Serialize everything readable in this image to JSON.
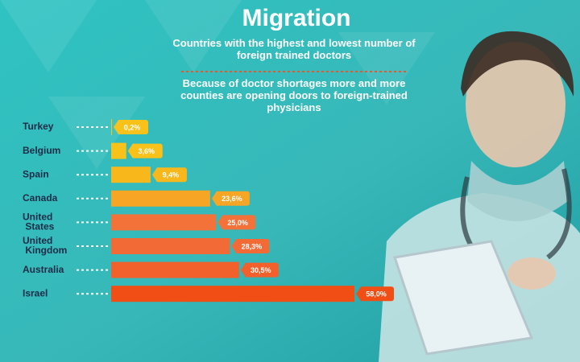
{
  "chart_data": {
    "type": "bar",
    "orientation": "horizontal",
    "title": "Migration",
    "subtitle": "Countries with the highest and lowest number of foreign trained doctors",
    "annotation": "Because of doctor shortages more and more counties are opening doors to foreign-trained physicians",
    "categories": [
      "Turkey",
      "Belgium",
      "Spain",
      "Canada",
      "United States",
      "United Kingdom",
      "Australia",
      "Israel"
    ],
    "values": [
      0.2,
      3.6,
      9.4,
      23.6,
      25.0,
      28.3,
      30.5,
      58.0
    ],
    "value_labels": [
      "0,2%",
      "3,6%",
      "9,4%",
      "23,6%",
      "25,0%",
      "28,3%",
      "30,5%",
      "58,0%"
    ],
    "colors": [
      "#f8c21a",
      "#f8c21a",
      "#f8b81c",
      "#f6a524",
      "#f2723a",
      "#f26a36",
      "#f2602c",
      "#f04e14"
    ]
  }
}
